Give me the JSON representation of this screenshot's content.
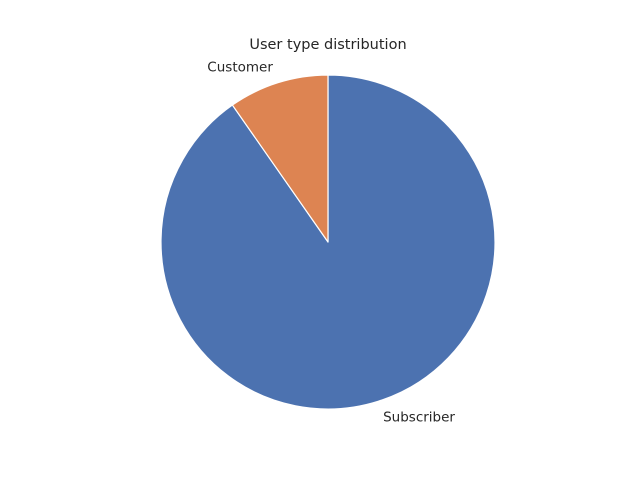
{
  "chart_data": {
    "type": "pie",
    "title": "User type distribution",
    "categories": [
      "Subscriber",
      "Customer"
    ],
    "values": [
      90.3,
      9.7
    ],
    "colors": [
      "#4c72b0",
      "#dd8452"
    ],
    "start_angle_deg": 90,
    "direction": "clockwise",
    "slice_edge_color": "#ffffff"
  }
}
